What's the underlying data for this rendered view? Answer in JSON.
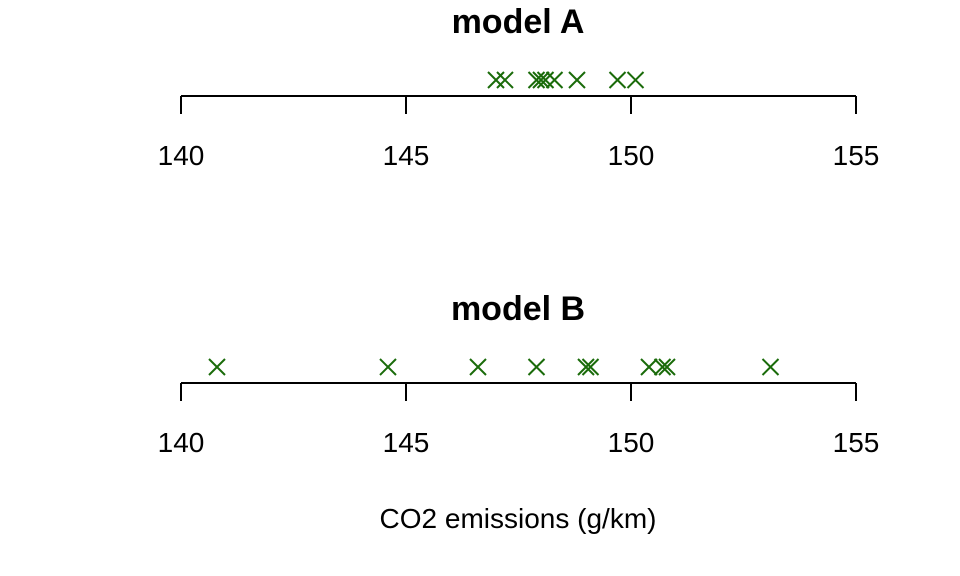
{
  "chart_data": {
    "type": "scatter",
    "xlabel": "CO2 emissions (g/km)",
    "xlim": [
      140,
      155
    ],
    "xticks": [
      140,
      145,
      150,
      155
    ],
    "marker": "x",
    "marker_color": "#1a6b0a",
    "panels": [
      {
        "title": "model A",
        "values": [
          147.0,
          147.2,
          147.9,
          148.0,
          148.1,
          148.3,
          148.8,
          149.7,
          150.1
        ]
      },
      {
        "title": "model B",
        "values": [
          140.8,
          144.6,
          146.6,
          147.9,
          149.0,
          149.1,
          150.4,
          150.7,
          150.8,
          153.1
        ]
      }
    ]
  }
}
